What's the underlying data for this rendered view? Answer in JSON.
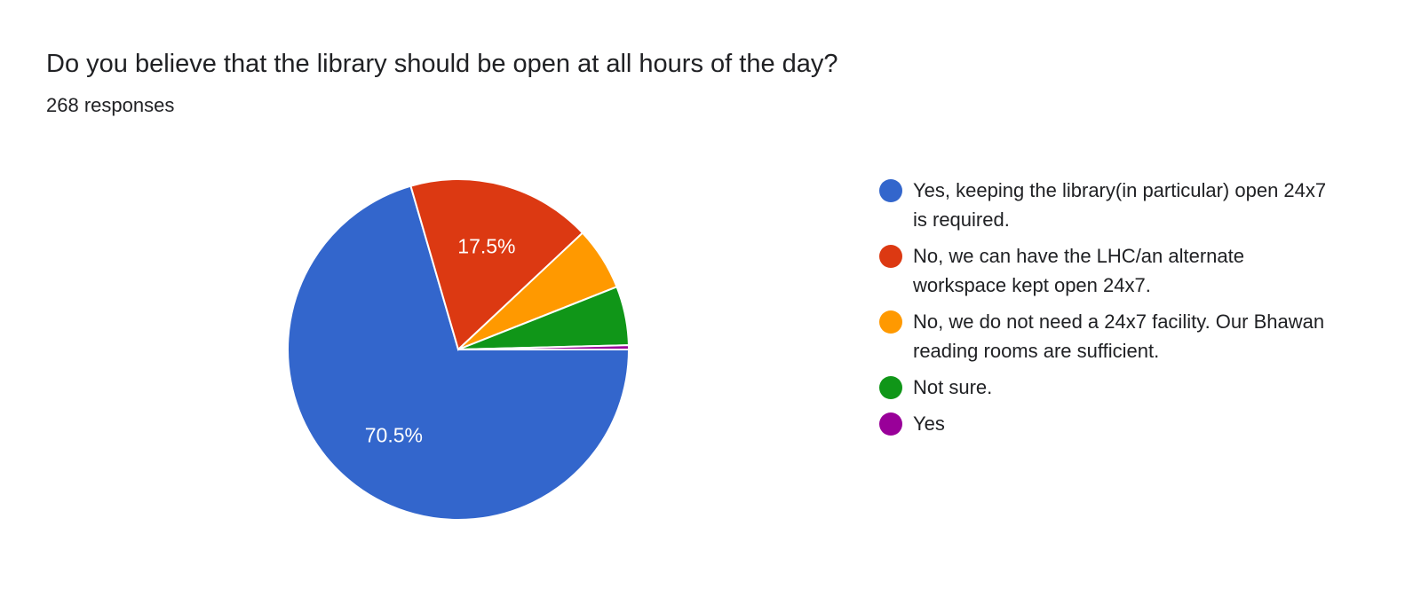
{
  "header": {
    "title": "Do you believe that the library should be open at all hours of the day?",
    "responses": "268 responses"
  },
  "chart_data": {
    "type": "pie",
    "title": "Do you believe that the library should be open at all hours of the day?",
    "total_responses": 268,
    "legend_position": "right",
    "slices": [
      {
        "label": "Yes, keeping the library(in particular) open 24x7 is required.",
        "percent": 70.5,
        "data_label": "70.5%",
        "color": "#3366cc"
      },
      {
        "label": "No, we can have the LHC/an alternate workspace kept open 24x7.",
        "percent": 17.5,
        "data_label": "17.5%",
        "color": "#dc3912"
      },
      {
        "label": "No, we do not need a 24x7 facility. Our Bhawan reading rooms are sufficient.",
        "percent": 6.0,
        "data_label": "",
        "color": "#ff9900"
      },
      {
        "label": "Not sure.",
        "percent": 5.6,
        "data_label": "",
        "color": "#109618"
      },
      {
        "label": "Yes",
        "percent": 0.4,
        "data_label": "",
        "color": "#990099"
      }
    ]
  }
}
